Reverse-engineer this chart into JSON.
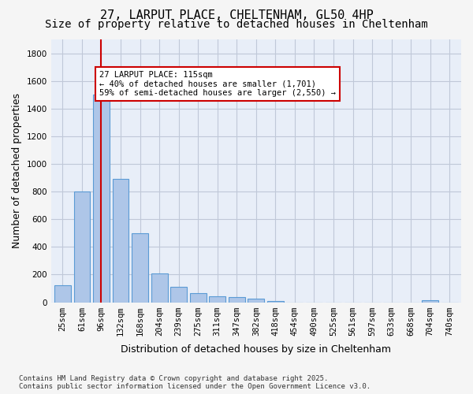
{
  "title_line1": "27, LARPUT PLACE, CHELTENHAM, GL50 4HP",
  "title_line2": "Size of property relative to detached houses in Cheltenham",
  "xlabel": "Distribution of detached houses by size in Cheltenham",
  "ylabel": "Number of detached properties",
  "categories": [
    "25sqm",
    "61sqm",
    "96sqm",
    "132sqm",
    "168sqm",
    "204sqm",
    "239sqm",
    "275sqm",
    "311sqm",
    "347sqm",
    "382sqm",
    "418sqm",
    "454sqm",
    "490sqm",
    "525sqm",
    "561sqm",
    "597sqm",
    "633sqm",
    "668sqm",
    "704sqm",
    "740sqm"
  ],
  "values": [
    120,
    800,
    1500,
    890,
    500,
    210,
    110,
    65,
    45,
    35,
    25,
    8,
    0,
    0,
    0,
    0,
    0,
    0,
    0,
    15,
    0
  ],
  "bar_color": "#aec6e8",
  "bar_edge_color": "#5b9bd5",
  "grid_color": "#c0c8d8",
  "bg_color": "#e8eef8",
  "fig_color": "#f5f5f5",
  "vline_x": 2,
  "vline_color": "#cc0000",
  "annotation_text": "27 LARPUT PLACE: 115sqm\n← 40% of detached houses are smaller (1,701)\n59% of semi-detached houses are larger (2,550) →",
  "annotation_box_color": "#ffffff",
  "annotation_box_edge": "#cc0000",
  "ylim": [
    0,
    1900
  ],
  "yticks": [
    0,
    200,
    400,
    600,
    800,
    1000,
    1200,
    1400,
    1600,
    1800
  ],
  "footnote": "Contains HM Land Registry data © Crown copyright and database right 2025.\nContains public sector information licensed under the Open Government Licence v3.0.",
  "title_fontsize": 11,
  "subtitle_fontsize": 10,
  "tick_fontsize": 7.5,
  "label_fontsize": 9
}
